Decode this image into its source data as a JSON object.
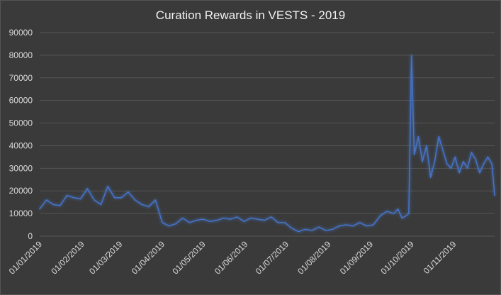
{
  "chart_data": {
    "type": "line",
    "title": "Curation Rewards in VESTS - 2019",
    "xlabel": "",
    "ylabel": "",
    "ylim": [
      0,
      90000
    ],
    "yticks": [
      0,
      10000,
      20000,
      30000,
      40000,
      50000,
      60000,
      70000,
      80000,
      90000
    ],
    "xtick_labels": [
      "01/01/2019",
      "01/02/2019",
      "01/03/2019",
      "01/04/2019",
      "01/05/2019",
      "01/06/2019",
      "01/07/2019",
      "01/08/2019",
      "01/09/2019",
      "01/10/2019",
      "01/11/2019"
    ],
    "grid": true,
    "legend": "none",
    "line_color": "#4472c4",
    "series": [
      {
        "x": [
          "01/01/2019",
          "06/01/2019",
          "11/01/2019",
          "16/01/2019",
          "21/01/2019",
          "26/01/2019",
          "31/01/2019",
          "05/02/2019",
          "10/02/2019",
          "15/02/2019",
          "20/02/2019",
          "25/02/2019",
          "02/03/2019",
          "07/03/2019",
          "12/03/2019",
          "17/03/2019",
          "22/03/2019",
          "27/03/2019",
          "01/04/2019",
          "06/04/2019",
          "11/04/2019",
          "16/04/2019",
          "21/04/2019",
          "26/04/2019",
          "01/05/2019",
          "06/05/2019",
          "11/05/2019",
          "16/05/2019",
          "21/05/2019",
          "26/05/2019",
          "31/05/2019",
          "05/06/2019",
          "10/06/2019",
          "15/06/2019",
          "20/06/2019",
          "25/06/2019",
          "30/06/2019",
          "05/07/2019",
          "10/07/2019",
          "15/07/2019",
          "20/07/2019",
          "25/07/2019",
          "30/07/2019",
          "04/08/2019",
          "09/08/2019",
          "14/08/2019",
          "19/08/2019",
          "24/08/2019",
          "29/08/2019",
          "03/09/2019",
          "08/09/2019",
          "13/09/2019",
          "18/09/2019",
          "21/09/2019",
          "24/09/2019",
          "27/09/2019",
          "29/09/2019",
          "01/10/2019",
          "03/10/2019",
          "06/10/2019",
          "09/10/2019",
          "12/10/2019",
          "15/10/2019",
          "18/10/2019",
          "21/10/2019",
          "24/10/2019",
          "27/10/2019",
          "30/10/2019",
          "02/11/2019",
          "05/11/2019",
          "08/11/2019",
          "11/11/2019",
          "14/11/2019",
          "17/11/2019",
          "20/11/2019",
          "23/11/2019",
          "26/11/2019",
          "29/11/2019",
          "01/12/2019"
        ],
        "values": [
          12000,
          16000,
          14000,
          13500,
          18000,
          17000,
          16500,
          21000,
          16000,
          14000,
          22000,
          17000,
          17000,
          19500,
          16000,
          14000,
          13000,
          16000,
          6000,
          4500,
          5500,
          8000,
          6000,
          7000,
          7500,
          6500,
          7000,
          8000,
          7500,
          8500,
          6500,
          8000,
          7500,
          7000,
          8500,
          6000,
          6000,
          3500,
          2000,
          3000,
          2500,
          4000,
          2500,
          3000,
          4500,
          5000,
          4500,
          6000,
          4500,
          5000,
          9000,
          11000,
          10000,
          12000,
          8000,
          9000,
          10000,
          80000,
          36000,
          44000,
          33000,
          40000,
          26000,
          33000,
          44000,
          38000,
          32000,
          30000,
          35000,
          28000,
          33000,
          30000,
          37000,
          34000,
          28000,
          32000,
          35000,
          32000,
          18000
        ]
      }
    ]
  }
}
